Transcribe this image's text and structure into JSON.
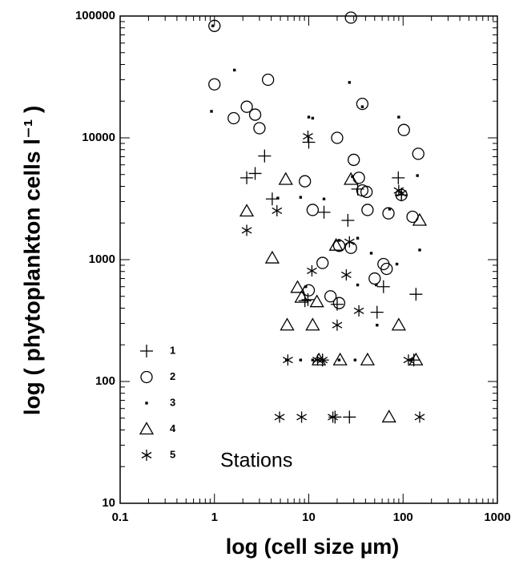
{
  "chart_data": {
    "type": "scatter",
    "x_label": "log (cell size µm)",
    "y_label": "log ( phytoplankton cells l⁻¹ )",
    "xscale": "log",
    "yscale": "log",
    "xlim": [
      0.1,
      1000
    ],
    "ylim": [
      10,
      100000
    ],
    "xticks": [
      0.1,
      1,
      10,
      100,
      1000
    ],
    "yticks": [
      10,
      100,
      1000,
      10000,
      100000
    ],
    "legend_title": "Stations",
    "legend": "lower left",
    "series": [
      {
        "name": "1",
        "marker": "plus",
        "color": "#000000",
        "x": [
          2.2,
          2.7,
          3.4,
          4.1,
          10,
          14.5,
          26,
          33,
          89,
          96,
          9.1,
          9.8,
          20,
          62,
          53,
          137,
          130,
          14,
          19,
          27
        ],
        "values": [
          4700,
          5100,
          7100,
          3150,
          9200,
          2450,
          2100,
          3800,
          4700,
          3400,
          460,
          470,
          430,
          600,
          370,
          520,
          150,
          150,
          51,
          51
        ]
      },
      {
        "name": "2",
        "marker": "circle",
        "color": "#000000",
        "x": [
          1.0,
          1.0,
          1.6,
          2.2,
          2.7,
          3.0,
          3.7,
          20,
          28,
          37,
          30,
          34,
          37,
          41,
          42,
          11,
          9.1,
          70,
          102,
          96,
          145,
          126,
          21,
          28,
          50,
          62,
          67,
          14,
          10,
          17,
          21
        ],
        "values": [
          83000,
          27500,
          14500,
          18000,
          15500,
          12000,
          30000,
          10000,
          97000,
          19000,
          6600,
          4700,
          3700,
          3600,
          2560,
          2560,
          4400,
          2400,
          11600,
          3400,
          7400,
          2250,
          1300,
          1250,
          700,
          920,
          840,
          940,
          560,
          500,
          440
        ]
      },
      {
        "name": "3",
        "marker": "dot",
        "color": "#000000",
        "x": [
          0.96,
          0.93,
          1.63,
          10,
          11,
          27,
          37,
          90,
          142,
          29,
          4.7,
          8.2,
          14.5,
          72,
          150,
          33,
          21,
          46,
          86,
          52,
          9.3,
          33,
          53,
          5.8,
          8.2,
          21,
          31,
          122,
          11
        ],
        "values": [
          83000,
          16500,
          36000,
          14800,
          14500,
          28500,
          18000,
          14800,
          4900,
          4800,
          3200,
          3250,
          3150,
          2600,
          1200,
          1500,
          1440,
          1130,
          920,
          620,
          600,
          620,
          290,
          150,
          150,
          150,
          150,
          150,
          150
        ]
      },
      {
        "name": "4",
        "marker": "triangle",
        "color": "#000000",
        "x": [
          2.2,
          5.7,
          4.1,
          7.6,
          8.4,
          12.2,
          5.9,
          11,
          19.5,
          28,
          150,
          90,
          42,
          12.8,
          21.5,
          137,
          71
        ],
        "values": [
          2500,
          4550,
          1030,
          590,
          490,
          450,
          290,
          290,
          1310,
          4550,
          2100,
          290,
          150,
          150,
          150,
          150,
          51
        ]
      },
      {
        "name": "5",
        "marker": "star",
        "color": "#000000",
        "x": [
          2.2,
          9.8,
          4.6,
          10.8,
          27,
          25,
          20,
          34,
          90,
          96,
          6.0,
          12.4,
          14,
          114,
          4.9,
          8.4,
          18,
          150
        ],
        "values": [
          1740,
          10300,
          2520,
          810,
          1400,
          750,
          290,
          380,
          3700,
          3500,
          150,
          150,
          150,
          150,
          51,
          51,
          51,
          51
        ]
      }
    ]
  }
}
